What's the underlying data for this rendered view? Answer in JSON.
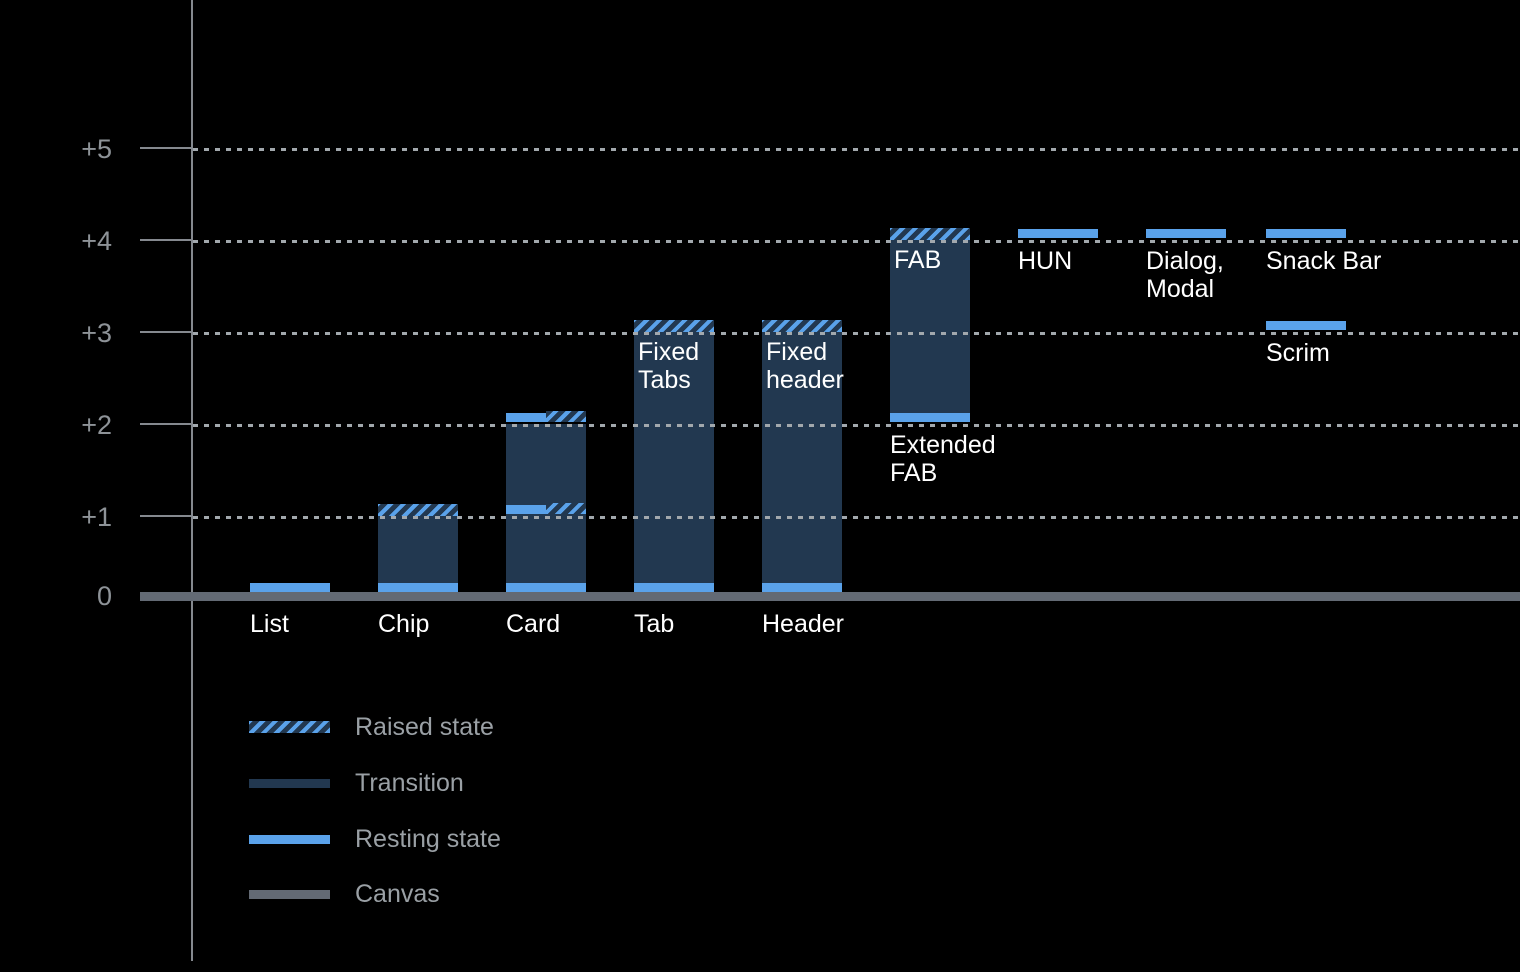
{
  "chart_data": {
    "type": "bar",
    "title": "",
    "y_axis": {
      "tick_labels": [
        "+5",
        "+4",
        "+3",
        "+2",
        "+1",
        "0"
      ],
      "tick_values": [
        5,
        4,
        3,
        2,
        1,
        0
      ],
      "ylim": [
        0,
        5.5
      ],
      "gridlines": "dotted horizontal lines at each level",
      "baseline": "canvas bar at level 0"
    },
    "components": [
      {
        "id": "list",
        "column": 0,
        "axis_label": "List",
        "resting": 0,
        "raised": null
      },
      {
        "id": "chip",
        "column": 1,
        "axis_label": "Chip",
        "resting": 0,
        "raised": 1
      },
      {
        "id": "card",
        "column": 2,
        "axis_label": "Card",
        "resting": 0,
        "raised": 2,
        "mid_marks": [
          1,
          2
        ]
      },
      {
        "id": "tab",
        "column": 3,
        "axis_label": "Tab",
        "resting": 0,
        "raised": 3,
        "inner_label_lines": [
          "Fixed",
          "Tabs"
        ]
      },
      {
        "id": "header",
        "column": 4,
        "axis_label": "Header",
        "resting": 0,
        "raised": 3,
        "inner_label_lines": [
          "Fixed",
          "header"
        ]
      },
      {
        "id": "fab",
        "column": 5,
        "resting": 2,
        "raised": 4,
        "inner_label_lines": [
          "FAB"
        ],
        "below_label_lines": [
          "Extended",
          "FAB"
        ]
      },
      {
        "id": "hun",
        "column": 6,
        "resting": 4,
        "raised": null,
        "below_label_lines": [
          "HUN"
        ]
      },
      {
        "id": "dialog-modal",
        "column": 7,
        "resting": 4,
        "raised": null,
        "below_label_lines": [
          "Dialog,",
          "Modal"
        ]
      },
      {
        "id": "snack-bar",
        "column": 8,
        "resting": 4,
        "raised": null,
        "below_label_lines": [
          "Snack Bar"
        ]
      },
      {
        "id": "scrim",
        "column": 8,
        "resting": 3,
        "raised": null,
        "below_label_lines": [
          "Scrim"
        ]
      }
    ]
  },
  "legend": {
    "position": "bottom-left",
    "items": [
      {
        "id": "raised",
        "label": "Raised state"
      },
      {
        "id": "transition",
        "label": "Transition"
      },
      {
        "id": "resting",
        "label": "Resting state"
      },
      {
        "id": "canvas",
        "label": "Canvas"
      }
    ]
  },
  "colors": {
    "background": "#000000",
    "resting": "#5aa2ea",
    "transition": "#223850",
    "canvas": "#636a74",
    "axis": "#85898f",
    "grid_dots": "#a2a8ad",
    "tick_label": "#8e9398",
    "legend_text": "#9aa0a5",
    "bar_label": "#ffffff"
  }
}
